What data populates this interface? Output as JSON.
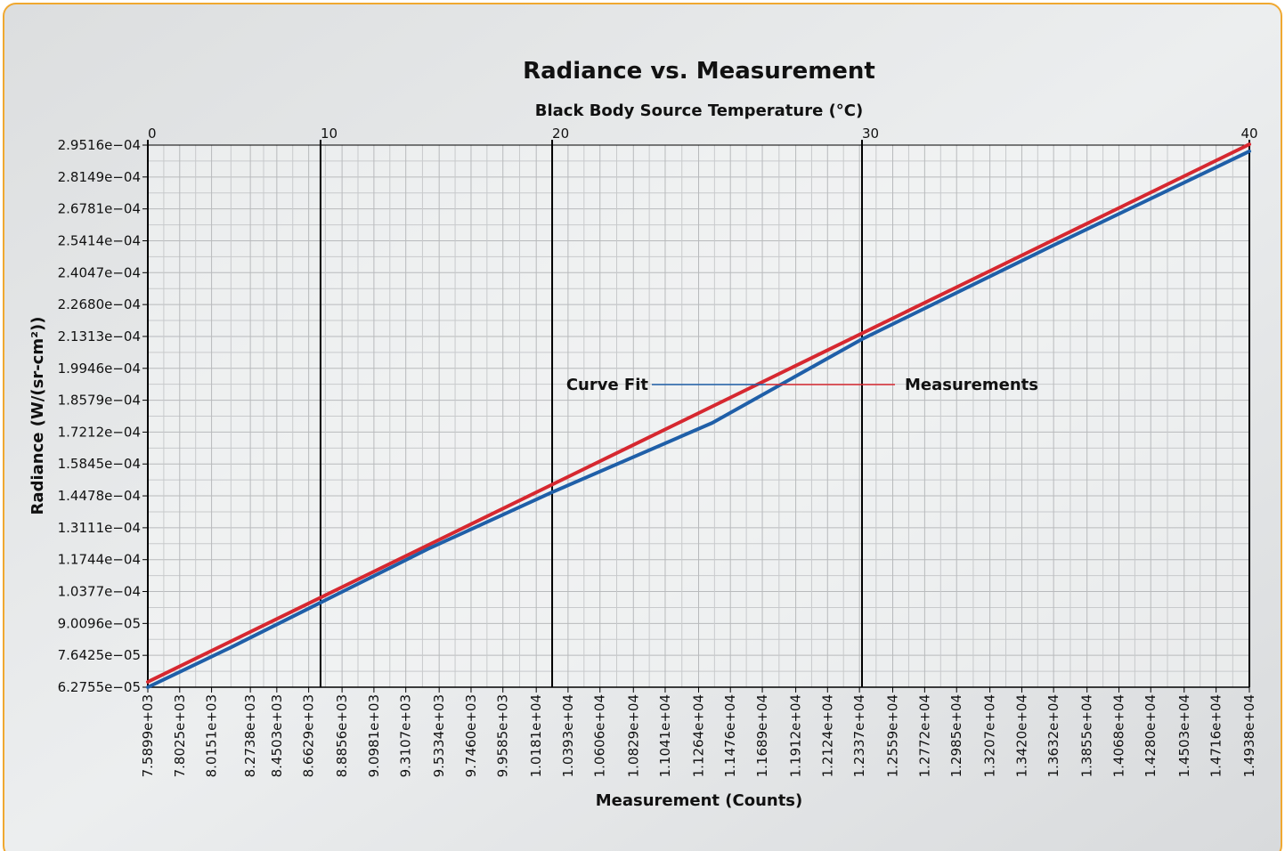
{
  "chart_data": {
    "type": "line",
    "title": "Radiance vs. Measurement",
    "x_label": "Measurement (Counts)",
    "y_label": "Radiance (W/(sr-cm²))",
    "x2": {
      "label": "Black Body Source Temperature (°C)",
      "ticks": [
        0,
        10,
        20,
        30,
        40
      ],
      "at_measurement": [
        7589.9,
        8742,
        10287,
        12354,
        14938
      ]
    },
    "xlim": [
      7589.9,
      14938
    ],
    "ylim": [
      6.2755e-05,
      0.00029516
    ],
    "xticks": [
      {
        "value": 7589.9,
        "label": "7.5899e+03"
      },
      {
        "value": 7802.5,
        "label": "7.8025e+03"
      },
      {
        "value": 8015.1,
        "label": "8.0151e+03"
      },
      {
        "value": 8273.8,
        "label": "8.2738e+03"
      },
      {
        "value": 8450.3,
        "label": "8.4503e+03"
      },
      {
        "value": 8662.9,
        "label": "8.6629e+03"
      },
      {
        "value": 8885.6,
        "label": "8.8856e+03"
      },
      {
        "value": 9098.1,
        "label": "9.0981e+03"
      },
      {
        "value": 9310.7,
        "label": "9.3107e+03"
      },
      {
        "value": 9533.4,
        "label": "9.5334e+03"
      },
      {
        "value": 9746.0,
        "label": "9.7460e+03"
      },
      {
        "value": 9958.5,
        "label": "9.9585e+03"
      },
      {
        "value": 10181,
        "label": "1.0181e+04"
      },
      {
        "value": 10393,
        "label": "1.0393e+04"
      },
      {
        "value": 10606,
        "label": "1.0606e+04"
      },
      {
        "value": 10829,
        "label": "1.0829e+04"
      },
      {
        "value": 11041,
        "label": "1.1041e+04"
      },
      {
        "value": 11264,
        "label": "1.1264e+04"
      },
      {
        "value": 11476,
        "label": "1.1476e+04"
      },
      {
        "value": 11689,
        "label": "1.1689e+04"
      },
      {
        "value": 11912,
        "label": "1.1912e+04"
      },
      {
        "value": 12124,
        "label": "1.2124e+04"
      },
      {
        "value": 12337,
        "label": "1.2337e+04"
      },
      {
        "value": 12559,
        "label": "1.2559e+04"
      },
      {
        "value": 12772,
        "label": "1.2772e+04"
      },
      {
        "value": 12985,
        "label": "1.2985e+04"
      },
      {
        "value": 13207,
        "label": "1.3207e+04"
      },
      {
        "value": 13420,
        "label": "1.3420e+04"
      },
      {
        "value": 13632,
        "label": "1.3632e+04"
      },
      {
        "value": 13855,
        "label": "1.3855e+04"
      },
      {
        "value": 14068,
        "label": "1.4068e+04"
      },
      {
        "value": 14280,
        "label": "1.4280e+04"
      },
      {
        "value": 14503,
        "label": "1.4503e+04"
      },
      {
        "value": 14716,
        "label": "1.4716e+04"
      },
      {
        "value": 14938,
        "label": "1.4938e+04"
      }
    ],
    "yticks": [
      {
        "value": 6.2755e-05,
        "label": "6.2755e−05"
      },
      {
        "value": 7.6425e-05,
        "label": "7.6425e−05"
      },
      {
        "value": 9.0096e-05,
        "label": "9.0096e−05"
      },
      {
        "value": 0.00010377,
        "label": "1.0377e−04"
      },
      {
        "value": 0.00011744,
        "label": "1.1744e−04"
      },
      {
        "value": 0.00013111,
        "label": "1.3111e−04"
      },
      {
        "value": 0.00014478,
        "label": "1.4478e−04"
      },
      {
        "value": 0.00015845,
        "label": "1.5845e−04"
      },
      {
        "value": 0.00017212,
        "label": "1.7212e−04"
      },
      {
        "value": 0.00018579,
        "label": "1.8579e−04"
      },
      {
        "value": 0.00019946,
        "label": "1.9946e−04"
      },
      {
        "value": 0.00021313,
        "label": "2.1313e−04"
      },
      {
        "value": 0.0002268,
        "label": "2.2680e−04"
      },
      {
        "value": 0.00024047,
        "label": "2.4047e−04"
      },
      {
        "value": 0.00025414,
        "label": "2.5414e−04"
      },
      {
        "value": 0.00026781,
        "label": "2.6781e−04"
      },
      {
        "value": 0.00028149,
        "label": "2.8149e−04"
      },
      {
        "value": 0.00029516,
        "label": "2.9516e−04"
      }
    ],
    "grid": true,
    "series": [
      {
        "name": "Measurements",
        "color": "#d62830",
        "x": [
          7589.9,
          8662.9,
          9746.0,
          10829,
          11912,
          12985,
          14068,
          14938
        ],
        "values": [
          6.504e-05,
          9.869e-05,
          0.00013266,
          0.00016663,
          0.0002006,
          0.00023425,
          0.00026821,
          0.0002955
        ]
      },
      {
        "name": "Curve Fit",
        "color": "#1f5fa8",
        "x": [
          7589.9,
          8148,
          8742,
          9455,
          10287,
          11356,
          12354,
          13613,
          14938
        ],
        "values": [
          6.2755e-05,
          7.994e-05,
          9.902e-05,
          0.00012191,
          0.00014634,
          0.0001761,
          0.00021197,
          0.00025166,
          0.0002925
        ]
      }
    ]
  }
}
